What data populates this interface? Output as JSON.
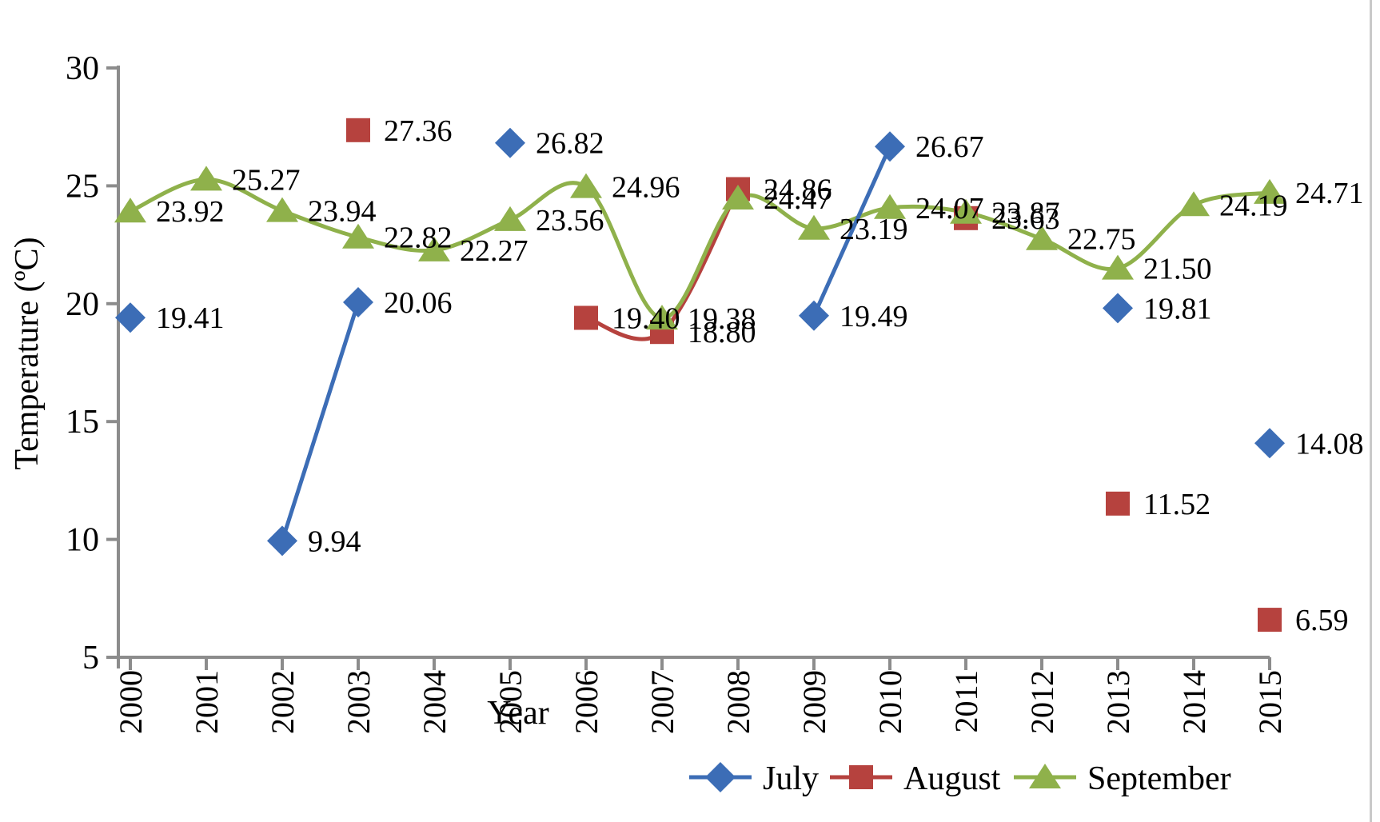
{
  "chart_data": {
    "type": "line",
    "title": "",
    "xlabel": "Year",
    "ylabel": "Temperature (ºC)",
    "ylim": [
      5,
      30
    ],
    "y_ticks": [
      30,
      25,
      20,
      15,
      10,
      5
    ],
    "x_categories": [
      "2000",
      "2001",
      "2002",
      "2003",
      "2004",
      "2005",
      "2006",
      "2007",
      "2008",
      "2009",
      "2010",
      "2011",
      "2012",
      "2013",
      "2014",
      "2015"
    ],
    "grid": false,
    "legend_position": "bottom-right",
    "axis_color": "#8c8c8c",
    "label_color": "#000000",
    "series": [
      {
        "name": "August",
        "marker": "square",
        "color": "#b6423e",
        "smooth": true,
        "points": [
          {
            "x": 2003,
            "y": 27.36
          },
          {
            "x": 2006,
            "y": 19.4
          },
          {
            "x": 2007,
            "y": 18.8
          },
          {
            "x": 2008,
            "y": 24.86
          },
          {
            "x": 2011,
            "y": 23.63
          },
          {
            "x": 2013,
            "y": 11.52
          },
          {
            "x": 2015,
            "y": 6.59
          }
        ]
      },
      {
        "name": "September",
        "marker": "triangle",
        "color": "#8fb14b",
        "smooth": true,
        "points": [
          {
            "x": 2000,
            "y": 23.92
          },
          {
            "x": 2001,
            "y": 25.27
          },
          {
            "x": 2002,
            "y": 23.94
          },
          {
            "x": 2003,
            "y": 22.82
          },
          {
            "x": 2004,
            "y": 22.27
          },
          {
            "x": 2005,
            "y": 23.56
          },
          {
            "x": 2006,
            "y": 24.96
          },
          {
            "x": 2007,
            "y": 19.38
          },
          {
            "x": 2008,
            "y": 24.47
          },
          {
            "x": 2009,
            "y": 23.19
          },
          {
            "x": 2010,
            "y": 24.07
          },
          {
            "x": 2011,
            "y": 23.87
          },
          {
            "x": 2012,
            "y": 22.75
          },
          {
            "x": 2013,
            "y": 21.5
          },
          {
            "x": 2014,
            "y": 24.19
          },
          {
            "x": 2015,
            "y": 24.71
          }
        ]
      },
      {
        "name": "July",
        "marker": "diamond",
        "color": "#3c6db6",
        "smooth": false,
        "points": [
          {
            "x": 2000,
            "y": 19.41
          },
          {
            "x": 2002,
            "y": 9.94
          },
          {
            "x": 2003,
            "y": 20.06
          },
          {
            "x": 2005,
            "y": 26.82
          },
          {
            "x": 2009,
            "y": 19.49
          },
          {
            "x": 2010,
            "y": 26.67
          },
          {
            "x": 2013,
            "y": 19.81
          },
          {
            "x": 2015,
            "y": 14.08
          }
        ]
      }
    ],
    "legend_order": [
      "July",
      "August",
      "September"
    ]
  }
}
